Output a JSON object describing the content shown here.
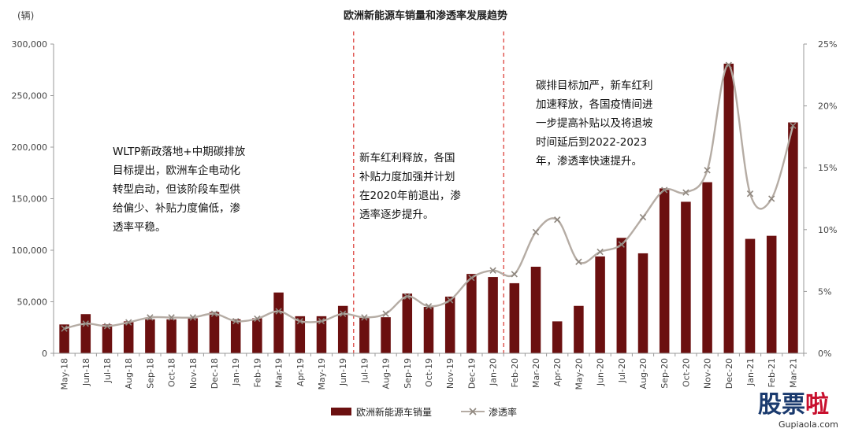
{
  "chart_data": {
    "type": "bar+line",
    "title": "欧洲新能源车销量和渗透率发展趋势",
    "left_unit": "(辆)",
    "categories": [
      "May-18",
      "Jun-18",
      "Jul-18",
      "Aug-18",
      "Sep-18",
      "Oct-18",
      "Nov-18",
      "Dec-18",
      "Jan-19",
      "Feb-19",
      "Mar-19",
      "Apr-19",
      "May-19",
      "Jun-19",
      "Jul-19",
      "Aug-19",
      "Sep-19",
      "Oct-19",
      "Nov-19",
      "Dec-19",
      "Jan-20",
      "Feb-20",
      "Mar-20",
      "Apr-20",
      "May-20",
      "Jun-20",
      "Jul-20",
      "Aug-20",
      "Sep-20",
      "Oct-20",
      "Nov-20",
      "Dec-20",
      "Jan-21",
      "Feb-21",
      "Mar-21"
    ],
    "x_tick_labels": [
      "May-18",
      "Jun-18",
      "Jul-18",
      "Aug-18",
      "Sep-18",
      "Oct-18",
      "Nov-18",
      "Dec-18",
      "Jan-19",
      "Feb-19",
      "Mar-19",
      "Apr-19",
      "May-19",
      "Jun-19",
      "Jul-19",
      "Aug-19",
      "Sep-19",
      "Oct-19",
      "Nov-19",
      "Dec-19",
      "Jan-20",
      "Feb-20",
      "Mar-20",
      "Apr-20",
      "May-20",
      "Jun-20",
      "Jul-20",
      "Aug-20",
      "Sep-20",
      "Oct-20",
      "Nov-20",
      "Dec-20",
      "Jan-21",
      "Feb-21",
      "Mar-21"
    ],
    "series": [
      {
        "name": "欧洲新能源车销量",
        "type": "bar",
        "axis": "left",
        "color": "#6b1010",
        "values": [
          28000,
          38000,
          28000,
          31000,
          33000,
          33000,
          34000,
          40000,
          33000,
          34000,
          59000,
          36000,
          36000,
          46000,
          35000,
          35000,
          58000,
          45000,
          55000,
          77000,
          74000,
          68000,
          84000,
          31000,
          46000,
          94000,
          112000,
          97000,
          160000,
          147000,
          166000,
          281000,
          111000,
          114000,
          224000
        ]
      },
      {
        "name": "渗透率",
        "type": "line",
        "axis": "right",
        "color": "#b5aca4",
        "values": [
          2.0,
          2.4,
          2.2,
          2.5,
          2.9,
          2.9,
          2.9,
          3.2,
          2.6,
          2.8,
          3.4,
          2.6,
          2.6,
          3.2,
          2.9,
          3.2,
          4.6,
          3.8,
          4.3,
          6.1,
          6.7,
          6.4,
          9.8,
          10.8,
          7.4,
          8.2,
          8.8,
          11.0,
          13.2,
          13.0,
          14.8,
          23.3,
          12.9,
          12.5,
          18.4
        ]
      }
    ],
    "y_left": {
      "min": 0,
      "max": 300000,
      "ticks": [
        0,
        50000,
        100000,
        150000,
        200000,
        250000,
        300000
      ],
      "tick_labels": [
        "0",
        "50,000",
        "100,000",
        "150,000",
        "200,000",
        "250,000",
        "300,000"
      ]
    },
    "y_right": {
      "min": 0,
      "max": 25,
      "ticks": [
        0,
        5,
        10,
        15,
        20,
        25
      ],
      "tick_labels": [
        "0%",
        "5%",
        "10%",
        "15%",
        "20%",
        "25%"
      ]
    },
    "dividers": [
      {
        "after_category": "Jun-19",
        "color": "#d9322b"
      },
      {
        "after_category": "Jan-20",
        "color": "#d9322b"
      }
    ],
    "annotations": [
      {
        "lines": [
          "WLTP新政落地+中期碳排放",
          "目标提出，欧洲车企电动化",
          "转型启动，但该阶段车型供",
          "给偏少、补贴力度偏低，渗",
          "透率平稳。"
        ]
      },
      {
        "lines": [
          "新车红利释放，各国",
          "补贴力度加强并计划",
          "在2020年前退出，渗",
          "透率逐步提升。"
        ]
      },
      {
        "lines": [
          "碳排目标加严，新车红利",
          "加速释放，各国疫情间进",
          "一步提高补贴以及将退坡",
          "时间延后到2022-2023",
          "年，渗透率快速提升。"
        ]
      }
    ],
    "legend": [
      {
        "label": "欧洲新能源车销量",
        "kind": "bar"
      },
      {
        "label": "渗透率",
        "kind": "line"
      }
    ],
    "legend_position": "bottom-center",
    "grid": false
  },
  "watermark": {
    "text": "股票啦",
    "accent_char": "啦",
    "url": "Gupiaola.com"
  }
}
